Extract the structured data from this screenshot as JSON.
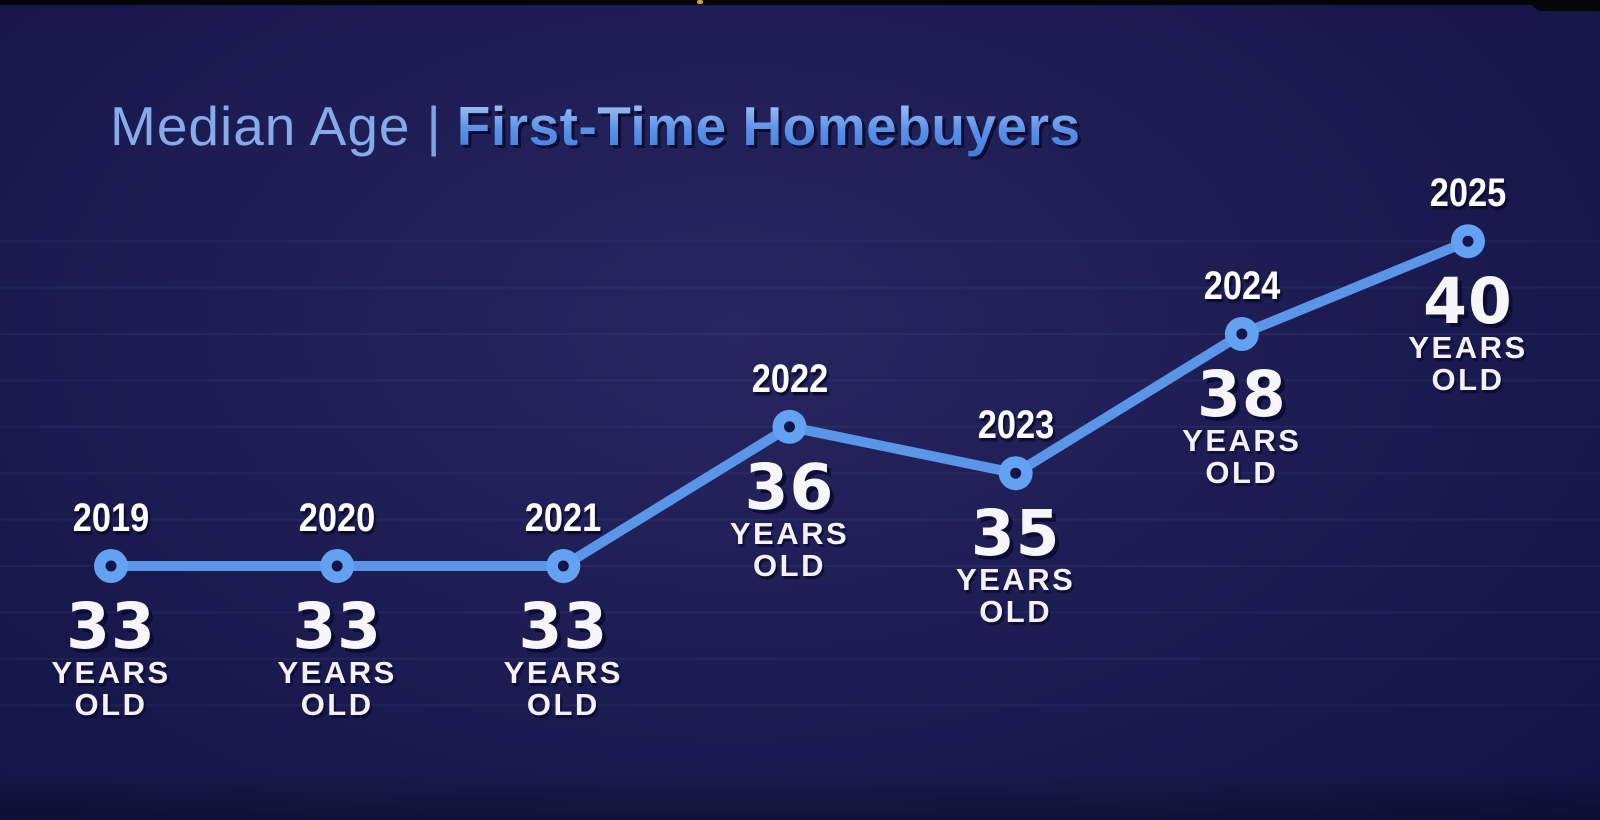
{
  "title": {
    "light": "Median Age",
    "separator": "|",
    "bold": "First-Time Homebuyers",
    "light_color": "#87aaeb",
    "bold_color": "#4f8ae4"
  },
  "labels": {
    "years_word": "YEARS",
    "old_word": "OLD"
  },
  "colors": {
    "background": "#1c1c52",
    "line": "#5b95e8",
    "dot_fill": "#63a2f2",
    "dot_hole": "#15154a",
    "gridline": "rgba(175,195,255,0.055)",
    "label_white": "#f7f6fa"
  },
  "chart_data": {
    "type": "line",
    "title": "Median Age | First-Time Homebuyers",
    "x": [
      2019,
      2020,
      2021,
      2022,
      2023,
      2024,
      2025
    ],
    "series": [
      {
        "name": "Median age of first-time homebuyers",
        "values": [
          33,
          33,
          33,
          36,
          35,
          38,
          40
        ],
        "unit_lines": [
          "YEARS",
          "OLD"
        ]
      }
    ],
    "xlabel": "",
    "ylabel": "",
    "ylim": [
      30,
      41
    ],
    "grid": "faint horizontal lines, one per year",
    "legend": "none",
    "point_labels": "year above each point, value with YEARS OLD below each point"
  }
}
